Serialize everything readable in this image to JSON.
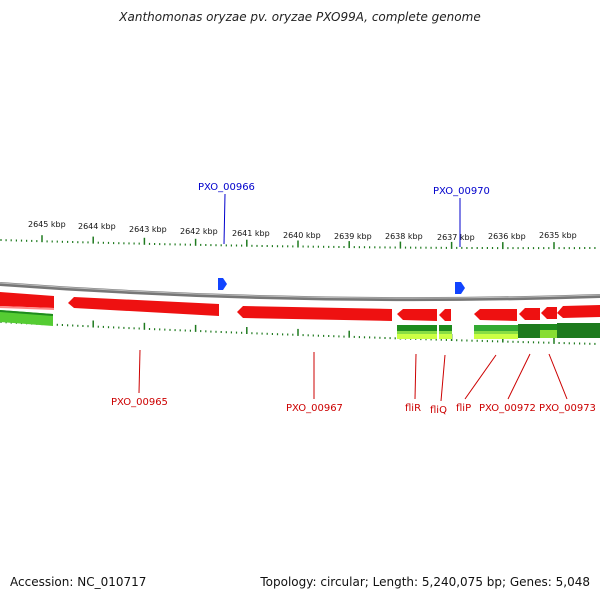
{
  "title": "Xanthomonas oryzae pv. oryzae PXO99A, complete genome",
  "footer": {
    "accession": "Accession: NC_010717",
    "summary": "Topology: circular; Length: 5,240,075 bp; Genes: 5,048"
  },
  "colors": {
    "gene": "#ee1111",
    "gene_label": "#cc0000",
    "feature_label": "#0000cc",
    "feature_marker": "#1144ff",
    "backbone": "#888888",
    "tick": "#1f7a1f",
    "rna_light": "#66dd33",
    "rna_dark": "#228b22"
  },
  "scale_labels": [
    "2645 kbp",
    "2644 kbp",
    "2643 kbp",
    "2642 kbp",
    "2641 kbp",
    "2640 kbp",
    "2639 kbp",
    "2638 kbp",
    "2637 kbp",
    "2636 kbp",
    "2635 kbp"
  ],
  "top_features": [
    {
      "label": "PXO_00966"
    },
    {
      "label": "PXO_00970"
    }
  ],
  "gene_labels": [
    "PXO_00965",
    "PXO_00967",
    "fliR",
    "fliQ",
    "fliP",
    "PXO_00972",
    "PXO_00973"
  ]
}
